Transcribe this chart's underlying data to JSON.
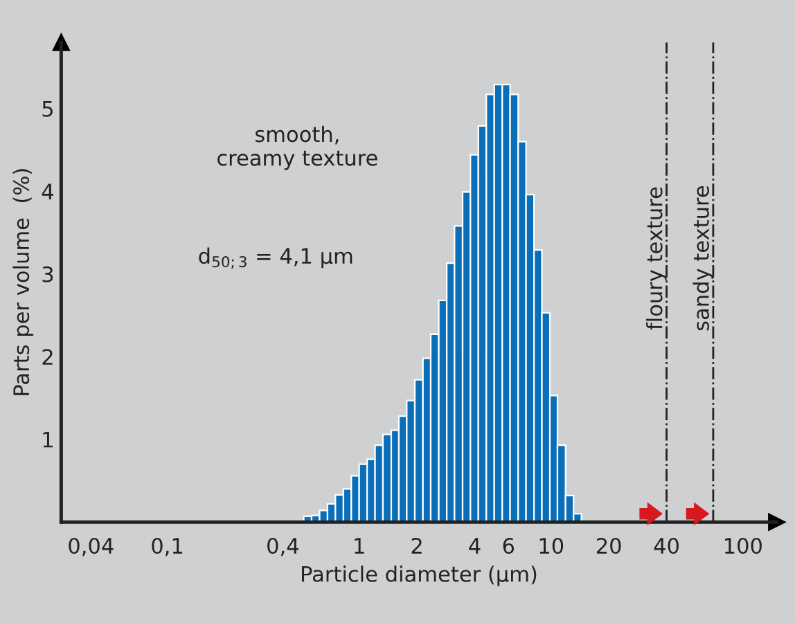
{
  "chart_data": {
    "type": "histogram",
    "xlabel": "Particle diameter (µm)",
    "ylabel": "Parts per volume  (%)",
    "bins": [
      0.514,
      0.565,
      0.622,
      0.684,
      0.752,
      0.828,
      0.91,
      1.0,
      1.1,
      1.21,
      1.33,
      1.47,
      1.61,
      1.77,
      1.95,
      2.15,
      2.36,
      2.6,
      2.86,
      3.14,
      3.46,
      3.8,
      4.18,
      4.6,
      5.06,
      5.57,
      6.12,
      6.74,
      7.41,
      8.15,
      8.96,
      9.86,
      10.8,
      11.9,
      13.1,
      14.4
    ],
    "values": [
      0.07,
      0.08,
      0.14,
      0.22,
      0.33,
      0.4,
      0.56,
      0.7,
      0.76,
      0.93,
      1.06,
      1.11,
      1.28,
      1.47,
      1.72,
      1.98,
      2.27,
      2.68,
      3.13,
      3.58,
      3.99,
      4.44,
      4.79,
      5.17,
      5.29,
      5.29,
      5.17,
      4.6,
      3.96,
      3.29,
      2.53,
      1.53,
      0.93,
      0.32,
      0.1
    ],
    "color": "#0a6fb8",
    "log": "x",
    "xlim": [
      0.028,
      150
    ],
    "ylim": [
      0,
      5.8
    ],
    "xticks": [
      {
        "value": 0.04,
        "label": "0,04"
      },
      {
        "value": 0.1,
        "label": "0,1"
      },
      {
        "value": 0.4,
        "label": "0,4"
      },
      1,
      2,
      4,
      6,
      10,
      20,
      40,
      100
    ],
    "yticks": [
      1,
      2,
      3,
      4,
      5
    ],
    "grid": false,
    "ref_lines": [
      {
        "axis": "x",
        "value": 40,
        "label": "floury texture",
        "line_style": "dashdot"
      },
      {
        "axis": "x",
        "value": 70,
        "label": "sandy texture",
        "line_style": "dashdot"
      }
    ],
    "annotations": [
      "smooth,\ncreamy texture",
      "d$_{50;3}$ = 4,1 µm"
    ]
  }
}
